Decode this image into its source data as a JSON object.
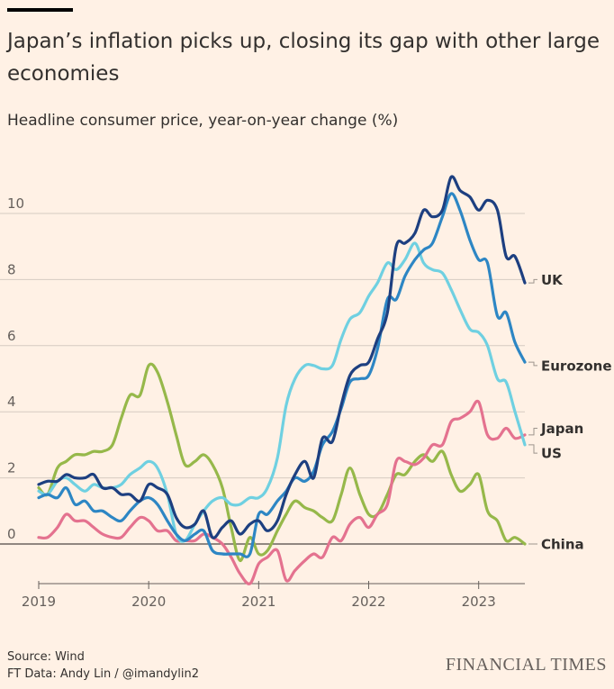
{
  "header": {
    "title": "Japan’s inflation picks up, closing its gap with other large economies",
    "subtitle": "Headline consumer price, year-on-year change (%)"
  },
  "footer": {
    "source": "Source: Wind",
    "credit": "FT Data: Andy Lin / @imandylin2",
    "brand": "FINANCIAL TIMES"
  },
  "chart_data": {
    "type": "line",
    "title": "Japan’s inflation picks up, closing its gap with other large economies",
    "subtitle": "Headline consumer price, year-on-year change (%)",
    "xlabel": "",
    "ylabel": "",
    "x_ticks": [
      "2019",
      "2020",
      "2021",
      "2022",
      "2023"
    ],
    "x_range": [
      2019.0,
      2023.42
    ],
    "y_ticks": [
      "0",
      "2",
      "4",
      "6",
      "8",
      "10"
    ],
    "ylim": [
      -1.2,
      11.5
    ],
    "grid": "horizontal",
    "legend": "direct labels at right end of lines",
    "series": [
      {
        "name": "UK",
        "color": "#1d3f80",
        "label_value": 7.9,
        "x": [
          2019.0,
          2019.08,
          2019.17,
          2019.25,
          2019.33,
          2019.42,
          2019.5,
          2019.58,
          2019.67,
          2019.75,
          2019.83,
          2019.92,
          2020.0,
          2020.08,
          2020.17,
          2020.25,
          2020.33,
          2020.42,
          2020.5,
          2020.58,
          2020.67,
          2020.75,
          2020.83,
          2020.92,
          2021.0,
          2021.08,
          2021.17,
          2021.25,
          2021.33,
          2021.42,
          2021.5,
          2021.58,
          2021.67,
          2021.75,
          2021.83,
          2021.92,
          2022.0,
          2022.08,
          2022.17,
          2022.25,
          2022.33,
          2022.42,
          2022.5,
          2022.58,
          2022.67,
          2022.75,
          2022.83,
          2022.92,
          2023.0,
          2023.08,
          2023.17,
          2023.25,
          2023.33,
          2023.42
        ],
        "y": [
          1.8,
          1.9,
          1.9,
          2.1,
          2.0,
          2.0,
          2.1,
          1.7,
          1.7,
          1.5,
          1.5,
          1.3,
          1.8,
          1.7,
          1.5,
          0.8,
          0.5,
          0.6,
          1.0,
          0.2,
          0.5,
          0.7,
          0.3,
          0.6,
          0.7,
          0.4,
          0.7,
          1.5,
          2.1,
          2.5,
          2.0,
          3.2,
          3.1,
          4.2,
          5.1,
          5.4,
          5.5,
          6.2,
          7.0,
          9.0,
          9.1,
          9.4,
          10.1,
          9.9,
          10.1,
          11.1,
          10.7,
          10.5,
          10.1,
          10.4,
          10.1,
          8.7,
          8.7,
          7.9
        ]
      },
      {
        "name": "Eurozone",
        "color": "#2d86c4",
        "label_value": 5.5,
        "x": [
          2019.0,
          2019.08,
          2019.17,
          2019.25,
          2019.33,
          2019.42,
          2019.5,
          2019.58,
          2019.67,
          2019.75,
          2019.83,
          2019.92,
          2020.0,
          2020.08,
          2020.17,
          2020.25,
          2020.33,
          2020.42,
          2020.5,
          2020.58,
          2020.67,
          2020.75,
          2020.83,
          2020.92,
          2021.0,
          2021.08,
          2021.17,
          2021.25,
          2021.33,
          2021.42,
          2021.5,
          2021.58,
          2021.67,
          2021.75,
          2021.83,
          2021.92,
          2022.0,
          2022.08,
          2022.17,
          2022.25,
          2022.33,
          2022.42,
          2022.5,
          2022.58,
          2022.67,
          2022.75,
          2022.83,
          2022.92,
          2023.0,
          2023.08,
          2023.17,
          2023.25,
          2023.33,
          2023.42
        ],
        "y": [
          1.4,
          1.5,
          1.4,
          1.7,
          1.2,
          1.3,
          1.0,
          1.0,
          0.8,
          0.7,
          1.0,
          1.3,
          1.4,
          1.2,
          0.7,
          0.3,
          0.1,
          0.3,
          0.4,
          -0.2,
          -0.3,
          -0.3,
          -0.3,
          -0.3,
          0.9,
          0.9,
          1.3,
          1.6,
          2.0,
          1.9,
          2.2,
          3.0,
          3.4,
          4.1,
          4.9,
          5.0,
          5.1,
          5.9,
          7.4,
          7.4,
          8.1,
          8.6,
          8.9,
          9.1,
          9.9,
          10.6,
          10.1,
          9.2,
          8.6,
          8.5,
          6.9,
          7.0,
          6.1,
          5.5
        ]
      },
      {
        "name": "US",
        "color": "#6fd0e1",
        "label_value": 3.0,
        "x": [
          2019.0,
          2019.08,
          2019.17,
          2019.25,
          2019.33,
          2019.42,
          2019.5,
          2019.58,
          2019.67,
          2019.75,
          2019.83,
          2019.92,
          2020.0,
          2020.08,
          2020.17,
          2020.25,
          2020.33,
          2020.42,
          2020.5,
          2020.58,
          2020.67,
          2020.75,
          2020.83,
          2020.92,
          2021.0,
          2021.08,
          2021.17,
          2021.25,
          2021.33,
          2021.42,
          2021.5,
          2021.58,
          2021.67,
          2021.75,
          2021.83,
          2021.92,
          2022.0,
          2022.08,
          2022.17,
          2022.25,
          2022.33,
          2022.42,
          2022.5,
          2022.58,
          2022.67,
          2022.75,
          2022.83,
          2022.92,
          2023.0,
          2023.08,
          2023.17,
          2023.25,
          2023.33,
          2023.42
        ],
        "y": [
          1.6,
          1.5,
          1.9,
          2.0,
          1.8,
          1.6,
          1.8,
          1.7,
          1.7,
          1.8,
          2.1,
          2.3,
          2.5,
          2.3,
          1.5,
          0.3,
          0.1,
          0.6,
          1.0,
          1.3,
          1.4,
          1.2,
          1.2,
          1.4,
          1.4,
          1.7,
          2.6,
          4.2,
          5.0,
          5.4,
          5.4,
          5.3,
          5.4,
          6.2,
          6.8,
          7.0,
          7.5,
          7.9,
          8.5,
          8.3,
          8.6,
          9.1,
          8.5,
          8.3,
          8.2,
          7.7,
          7.1,
          6.5,
          6.4,
          6.0,
          5.0,
          4.9,
          4.0,
          3.0
        ]
      },
      {
        "name": "Japan",
        "color": "#e4728f",
        "label_value": 3.3,
        "x": [
          2019.0,
          2019.08,
          2019.17,
          2019.25,
          2019.33,
          2019.42,
          2019.5,
          2019.58,
          2019.67,
          2019.75,
          2019.83,
          2019.92,
          2020.0,
          2020.08,
          2020.17,
          2020.25,
          2020.33,
          2020.42,
          2020.5,
          2020.58,
          2020.67,
          2020.75,
          2020.83,
          2020.92,
          2021.0,
          2021.08,
          2021.17,
          2021.25,
          2021.33,
          2021.42,
          2021.5,
          2021.58,
          2021.67,
          2021.75,
          2021.83,
          2021.92,
          2022.0,
          2022.08,
          2022.17,
          2022.25,
          2022.33,
          2022.42,
          2022.5,
          2022.58,
          2022.67,
          2022.75,
          2022.83,
          2022.92,
          2023.0,
          2023.08,
          2023.17,
          2023.25,
          2023.33,
          2023.42
        ],
        "y": [
          0.2,
          0.2,
          0.5,
          0.9,
          0.7,
          0.7,
          0.5,
          0.3,
          0.2,
          0.2,
          0.5,
          0.8,
          0.7,
          0.4,
          0.4,
          0.1,
          0.1,
          0.1,
          0.3,
          0.2,
          0.0,
          -0.4,
          -0.9,
          -1.2,
          -0.6,
          -0.4,
          -0.2,
          -1.1,
          -0.8,
          -0.5,
          -0.3,
          -0.4,
          0.2,
          0.1,
          0.6,
          0.8,
          0.5,
          0.9,
          1.2,
          2.5,
          2.5,
          2.4,
          2.6,
          3.0,
          3.0,
          3.7,
          3.8,
          4.0,
          4.3,
          3.3,
          3.2,
          3.5,
          3.2,
          3.3
        ]
      },
      {
        "name": "China",
        "color": "#96b84a",
        "label_value": 0.0,
        "x": [
          2019.0,
          2019.08,
          2019.17,
          2019.25,
          2019.33,
          2019.42,
          2019.5,
          2019.58,
          2019.67,
          2019.75,
          2019.83,
          2019.92,
          2020.0,
          2020.08,
          2020.17,
          2020.25,
          2020.33,
          2020.42,
          2020.5,
          2020.58,
          2020.67,
          2020.75,
          2020.83,
          2020.92,
          2021.0,
          2021.08,
          2021.17,
          2021.25,
          2021.33,
          2021.42,
          2021.5,
          2021.58,
          2021.67,
          2021.75,
          2021.83,
          2021.92,
          2022.0,
          2022.08,
          2022.17,
          2022.25,
          2022.33,
          2022.42,
          2022.5,
          2022.58,
          2022.67,
          2022.75,
          2022.83,
          2022.92,
          2023.0,
          2023.08,
          2023.17,
          2023.25,
          2023.33,
          2023.42
        ],
        "y": [
          1.7,
          1.5,
          2.3,
          2.5,
          2.7,
          2.7,
          2.8,
          2.8,
          3.0,
          3.8,
          4.5,
          4.5,
          5.4,
          5.2,
          4.3,
          3.3,
          2.4,
          2.5,
          2.7,
          2.4,
          1.7,
          0.5,
          -0.5,
          0.2,
          -0.3,
          -0.2,
          0.4,
          0.9,
          1.3,
          1.1,
          1.0,
          0.8,
          0.7,
          1.5,
          2.3,
          1.5,
          0.9,
          0.9,
          1.5,
          2.1,
          2.1,
          2.5,
          2.7,
          2.5,
          2.8,
          2.1,
          1.6,
          1.8,
          2.1,
          1.0,
          0.7,
          0.1,
          0.2,
          0.0
        ]
      }
    ]
  }
}
